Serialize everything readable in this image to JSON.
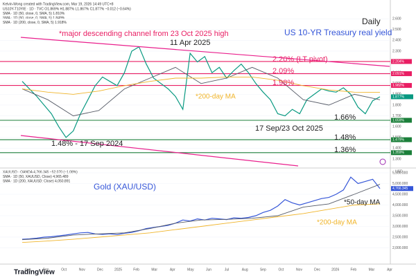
{
  "header": {
    "credit": "Kelvin-Wong created with TradingView.com, Mar 19, 2026 14:49 UTC+8",
    "brand": "TradingView"
  },
  "legend_top": [
    "US10Y-T10YIE · 1D · TVC  O1.869% H1.887% L1.867% C1.877% −0.012 (−0.64%)",
    "SMA · 1D (50, close, 0, SMA, 5)  1.810%",
    "SMA · 1D (50, close, 0, SMA, 5)  1.849%",
    "SMA · 1D (200, close, 0, SMA, 5)  1.918%"
  ],
  "legend_bottom": [
    "XAUUSD · OANDA  4,766.345  −52.070 (−1.08%)",
    "SMA · 1D (50, XAUUSD, Close)  4,965.489",
    "SMA · 1D (200, XAUUSD: Close)  4,050.891"
  ],
  "annotations": [
    "*major descending channel from 23 Oct 2025 high",
    "11 Apr 2025",
    "2.20% (LT pivot)",
    "2.09%",
    "1.98%",
    "*200-day MA",
    "1.66%",
    "17 Sep/23 Oct 2025",
    "1.48%",
    "1.36%",
    "1.48%  -  17 Sep 2024",
    "Daily",
    "US 10-YR Treasury real yield",
    "Gold (XAU/USD)",
    "*50-day MA",
    "*200-day MA"
  ],
  "time_axis": {
    "labels": [
      "Aug",
      "Sep",
      "Oct",
      "Nov",
      "Dec",
      "2025",
      "Feb",
      "Mar",
      "Apr",
      "May",
      "Jun",
      "Jul",
      "Aug",
      "Sep",
      "Oct",
      "Nov",
      "Dec",
      "2026",
      "Feb",
      "Mar",
      "Apr"
    ]
  },
  "chart_data": [
    {
      "type": "line",
      "ylim": [
        1.236,
        2.697
      ],
      "yticks": [
        {
          "value": 2.6,
          "label": "2.600"
        },
        {
          "value": 2.5,
          "label": "2.500"
        },
        {
          "value": 2.4,
          "label": "2.400"
        },
        {
          "value": 2.3,
          "label": "2.300"
        },
        {
          "value": 2.1,
          "label": "2.100"
        },
        {
          "value": 2.0,
          "label": "2.000"
        },
        {
          "value": 1.9,
          "label": "1.900"
        },
        {
          "value": 1.8,
          "label": "1.800"
        },
        {
          "value": 1.7,
          "label": "1.700"
        },
        {
          "value": 1.6,
          "label": "1.600"
        },
        {
          "value": 1.5,
          "label": "1.500"
        },
        {
          "value": 1.4,
          "label": "1.400"
        },
        {
          "value": 1.3,
          "label": "1.300"
        }
      ],
      "levels": [
        {
          "value": 2.204,
          "label": "2.204%",
          "color": "#e91e63"
        },
        {
          "value": 2.091,
          "label": "2.091%",
          "color": "#e91e63"
        },
        {
          "value": 1.982,
          "label": "1.982%",
          "color": "#e91e63"
        },
        {
          "value": 1.659,
          "label": "1.659%",
          "color": "#1b7f3a"
        },
        {
          "value": 1.479,
          "label": "1.479%",
          "color": "#1b7f3a"
        },
        {
          "value": 1.359,
          "label": "1.359%",
          "color": "#1b7f3a"
        }
      ],
      "last": {
        "value": 1.877,
        "label": "1.877%"
      },
      "series": [
        {
          "name": "US10Y-T10YIE",
          "color": "#089981",
          "values": [
            2.02,
            1.95,
            1.88,
            1.8,
            1.72,
            1.6,
            1.5,
            1.56,
            1.72,
            1.85,
            1.98,
            2.06,
            2.02,
            1.98,
            2.1,
            2.3,
            2.34,
            2.18,
            2.05,
            2.0,
            1.95,
            1.88,
            1.76,
            2.28,
            2.2,
            2.25,
            2.1,
            2.15,
            2.05,
            2.12,
            2.18,
            2.1,
            2.0,
            1.92,
            1.85,
            1.72,
            1.7,
            1.76,
            1.72,
            1.85,
            1.9,
            1.95,
            1.93,
            1.92,
            1.96,
            1.9,
            1.78,
            1.72,
            1.84,
            1.877
          ]
        },
        {
          "name": "SMA 50",
          "color": "#555a66",
          "values": [
            1.95,
            1.85,
            1.7,
            1.75,
            1.95,
            2.05,
            2.15,
            2.0,
            2.05,
            2.15,
            2.05,
            1.85,
            1.8,
            1.9,
            1.849
          ]
        },
        {
          "name": "SMA 200",
          "color": "#f0b429",
          "values": [
            1.95,
            1.92,
            1.9,
            1.93,
            1.98,
            2.02,
            2.05,
            2.05,
            2.06,
            2.06,
            2.03,
            1.98,
            1.94,
            1.92,
            1.918
          ]
        }
      ]
    },
    {
      "type": "line",
      "ylim": [
        1306,
        5661
      ],
      "yticks": [
        {
          "value": 5500,
          "label": "5,500.000"
        },
        {
          "value": 5000,
          "label": "5,000.000"
        },
        {
          "value": 4500,
          "label": "4,500.000"
        },
        {
          "value": 4000,
          "label": "4,000.000"
        },
        {
          "value": 3500,
          "label": "3,500.000"
        },
        {
          "value": 3000,
          "label": "3,000.000"
        },
        {
          "value": 2500,
          "label": "2,500.000"
        },
        {
          "value": 2000,
          "label": "2,000.000"
        }
      ],
      "axis_unit": "USD",
      "last": {
        "value": 4766.345,
        "label": "4,766.345"
      },
      "series": [
        {
          "name": "XAUUSD",
          "color": "#3556d8",
          "values": [
            2400,
            2420,
            2450,
            2500,
            2520,
            2560,
            2600,
            2650,
            2700,
            2720,
            2650,
            2630,
            2650,
            2620,
            2680,
            2720,
            2800,
            2900,
            2950,
            3000,
            3050,
            3150,
            3300,
            3250,
            3350,
            3300,
            3380,
            3350,
            3320,
            3400,
            3380,
            3420,
            3500,
            3650,
            3750,
            3950,
            4250,
            4100,
            4000,
            4100,
            4200,
            4300,
            4350,
            4500,
            4700,
            5300,
            5000,
            5100,
            5200,
            4766.345
          ]
        },
        {
          "name": "SMA 50",
          "color": "#555a66",
          "values": [
            2380,
            2450,
            2600,
            2650,
            2700,
            2900,
            3150,
            3300,
            3330,
            3380,
            3500,
            3900,
            4050,
            4500,
            4965.489
          ]
        },
        {
          "name": "SMA 200",
          "color": "#f0b429",
          "values": [
            2250,
            2320,
            2400,
            2500,
            2600,
            2700,
            2850,
            3000,
            3150,
            3300,
            3450,
            3600,
            3800,
            4000,
            4050.891
          ]
        }
      ]
    }
  ]
}
